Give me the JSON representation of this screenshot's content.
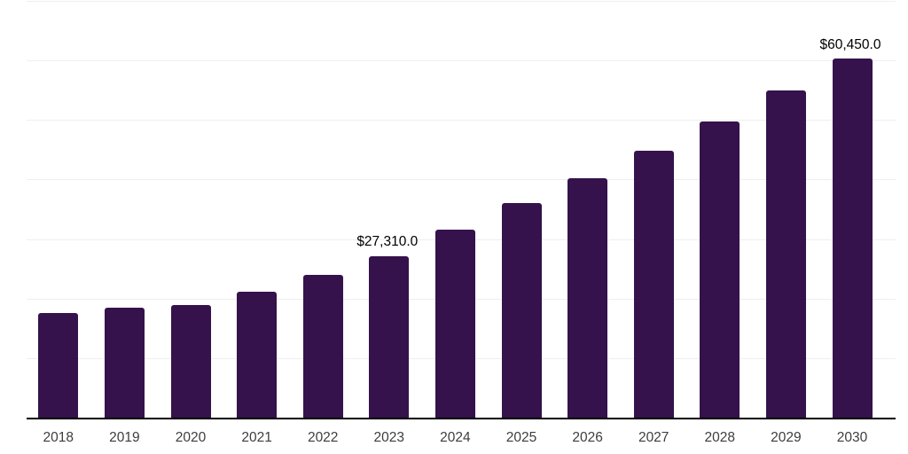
{
  "chart_data": {
    "type": "bar",
    "title": "",
    "xlabel": "",
    "ylabel": "",
    "categories": [
      "2018",
      "2019",
      "2020",
      "2021",
      "2022",
      "2023",
      "2024",
      "2025",
      "2026",
      "2027",
      "2028",
      "2029",
      "2030"
    ],
    "values": [
      17670,
      18570,
      19060,
      21250,
      24120,
      27310,
      31790,
      36140,
      40400,
      44970,
      49930,
      55090,
      60450
    ],
    "labeled_points": [
      {
        "category": "2023",
        "label": "$27,310.0"
      },
      {
        "category": "2030",
        "label": "$60,450.0"
      }
    ],
    "ylim": [
      0,
      70000
    ],
    "gridline_step": 10000,
    "grid": "horizontal-only",
    "legend": "none",
    "y_axis_tick_labels": "none",
    "colors": {
      "bar": "#35124B",
      "axis_line": "#000000",
      "gridline": "#EFEFEF",
      "tick_label": "#3D3D3D",
      "data_label": "#000000",
      "background": "#FFFFFF"
    }
  }
}
